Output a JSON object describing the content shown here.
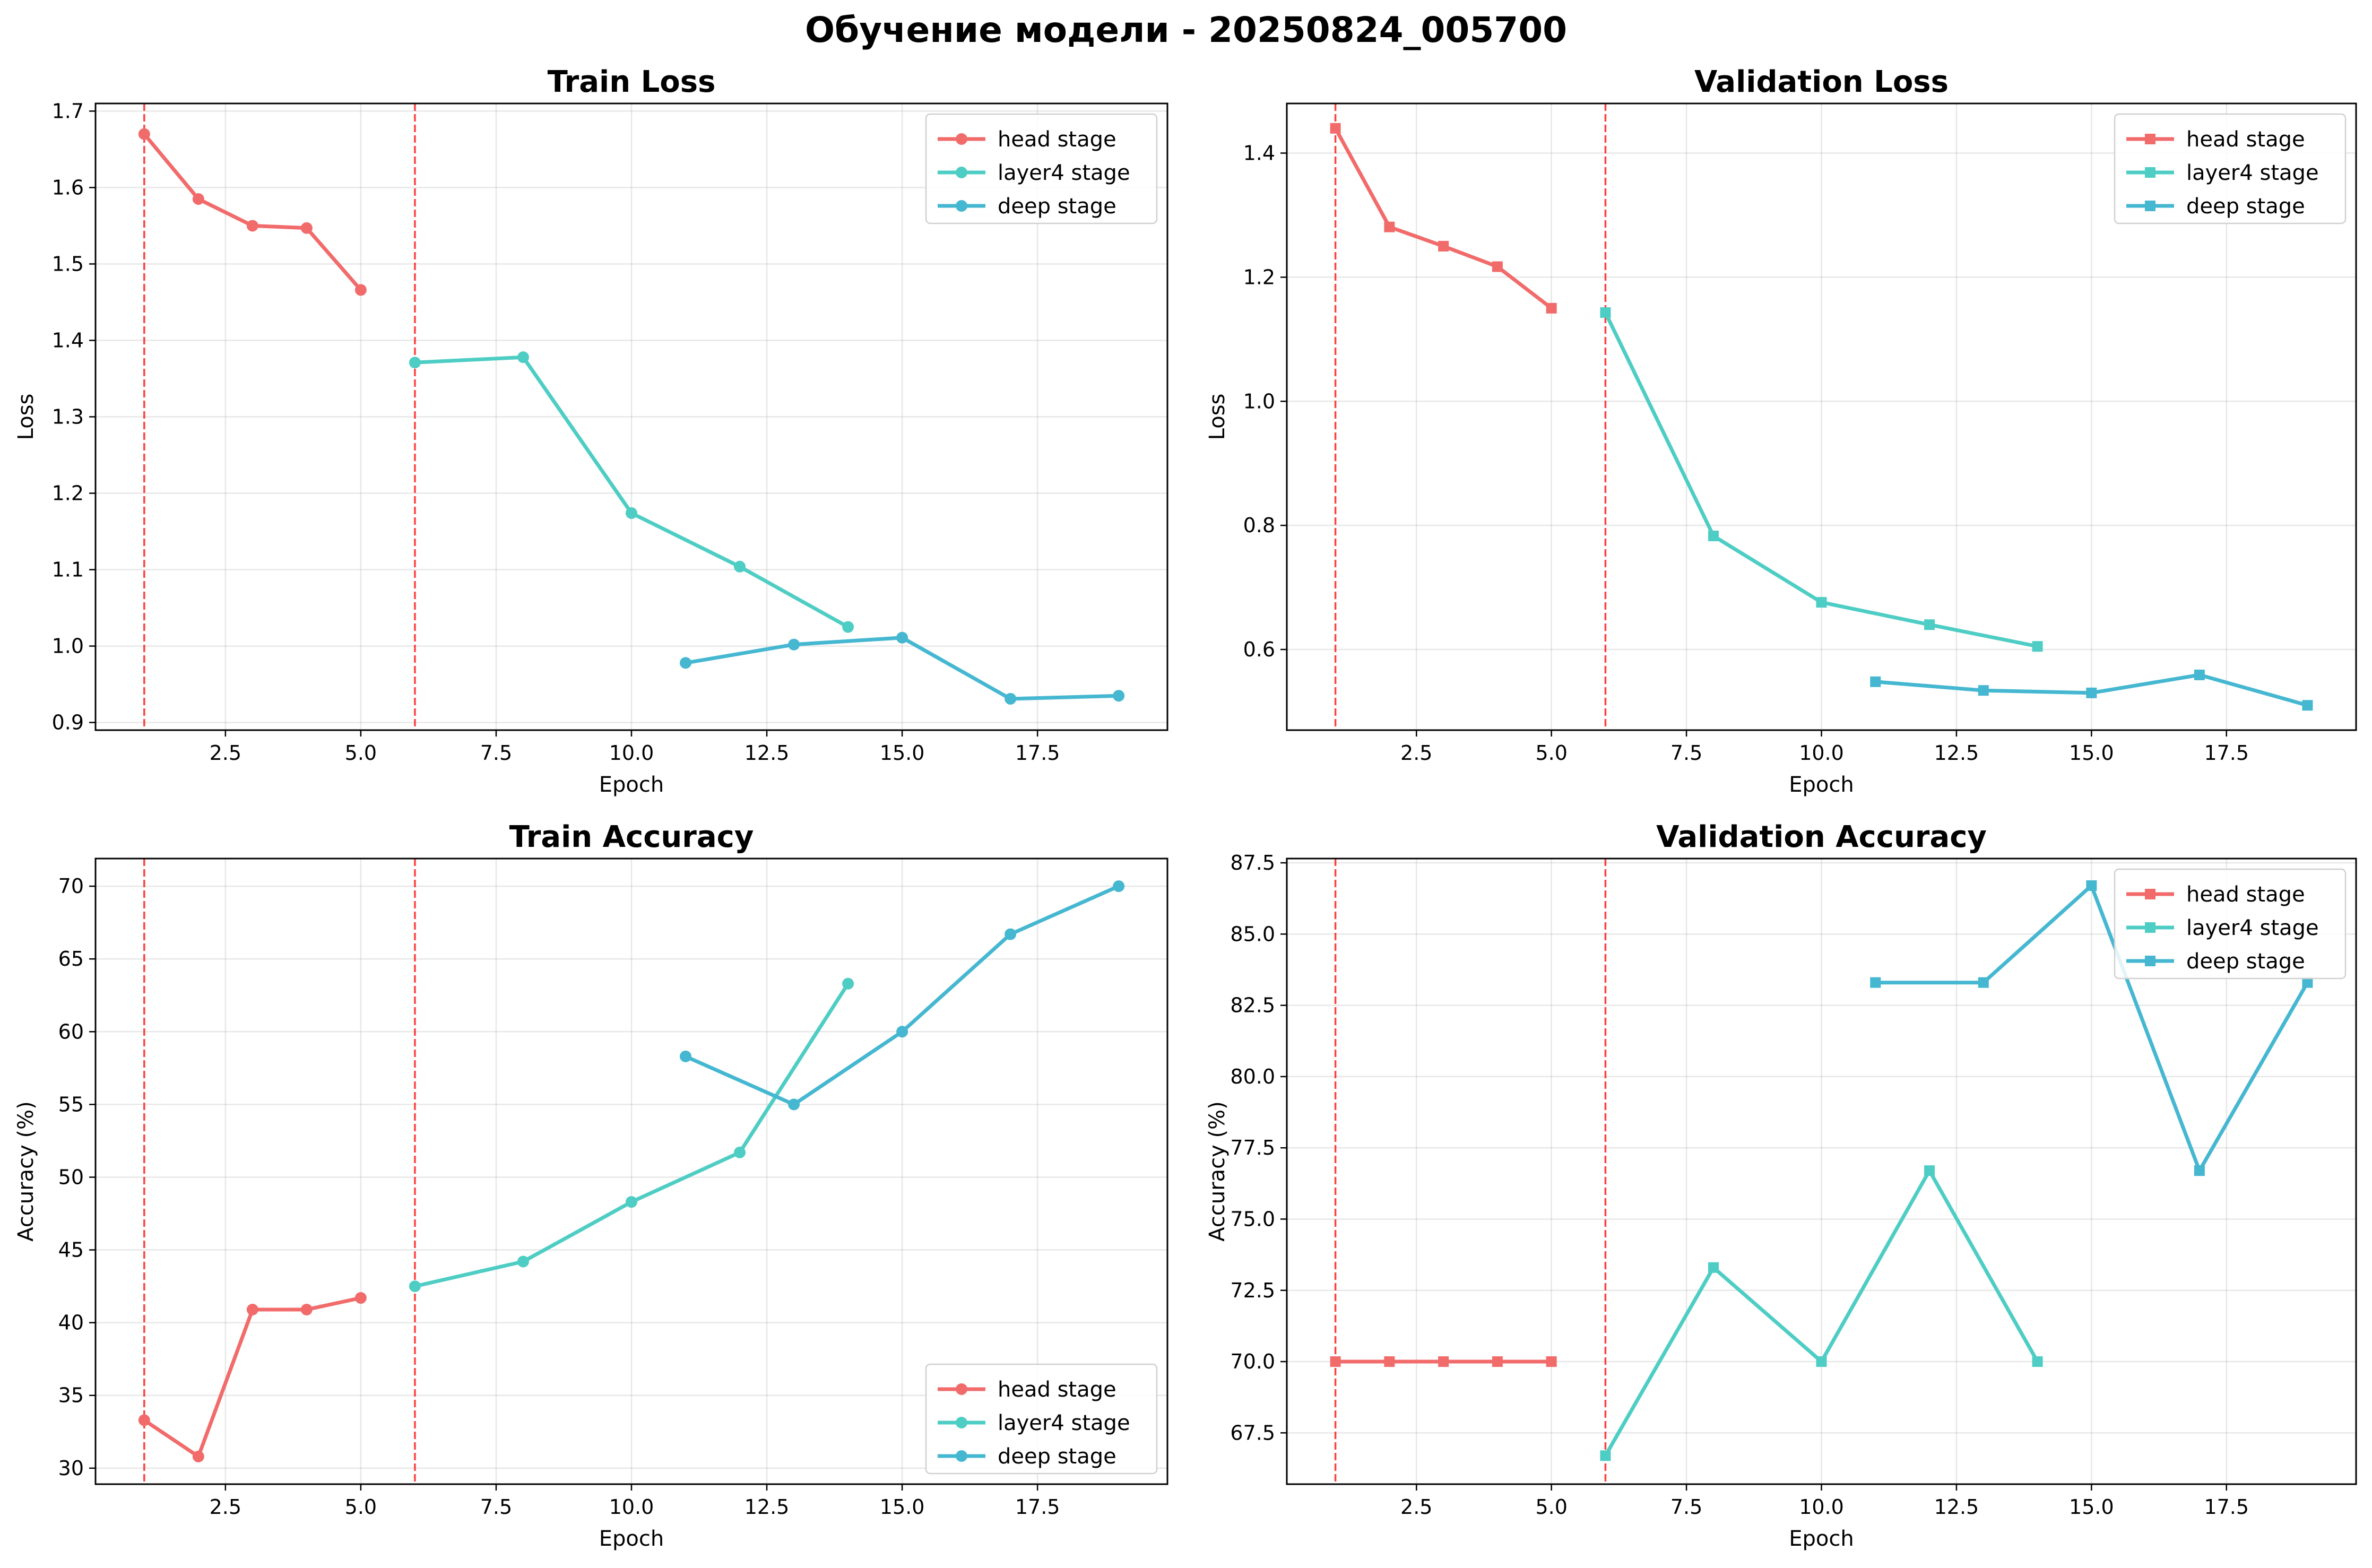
{
  "figure": {
    "title": "Обучение модели - 20250824_005700"
  },
  "colors": {
    "head": "#f26b6b",
    "layer4": "#4ecdc4",
    "deep": "#45b7d1",
    "boundary": "#ff0000"
  },
  "chart_data": [
    {
      "type": "line",
      "id": "train-loss",
      "title": "Train Loss",
      "xlabel": "Epoch",
      "ylabel": "Loss",
      "marker": "circle",
      "xlim": [
        0.1,
        19.9
      ],
      "ylim": [
        0.89,
        1.71
      ],
      "xticks": [
        2.5,
        5.0,
        7.5,
        10.0,
        12.5,
        15.0,
        17.5
      ],
      "yticks": [
        0.9,
        1.0,
        1.1,
        1.2,
        1.3,
        1.4,
        1.5,
        1.6,
        1.7
      ],
      "tick_decimals": [
        1,
        1
      ],
      "vlines": [
        1,
        6
      ],
      "legend": "upper right",
      "grid": true,
      "series": [
        {
          "name": "head stage",
          "key": "head",
          "x": [
            1,
            2,
            3,
            4,
            5
          ],
          "y": [
            1.67,
            1.585,
            1.55,
            1.547,
            1.466
          ]
        },
        {
          "name": "layer4 stage",
          "key": "layer4",
          "x": [
            6,
            8,
            10,
            12,
            14
          ],
          "y": [
            1.371,
            1.378,
            1.174,
            1.104,
            1.025
          ]
        },
        {
          "name": "deep stage",
          "key": "deep",
          "x": [
            11,
            13,
            15,
            17,
            19
          ],
          "y": [
            0.978,
            1.002,
            1.011,
            0.931,
            0.935
          ]
        }
      ]
    },
    {
      "type": "line",
      "id": "val-loss",
      "title": "Validation Loss",
      "xlabel": "Epoch",
      "ylabel": "Loss",
      "marker": "square",
      "xlim": [
        0.1,
        19.9
      ],
      "ylim": [
        0.47,
        1.48
      ],
      "xticks": [
        2.5,
        5.0,
        7.5,
        10.0,
        12.5,
        15.0,
        17.5
      ],
      "yticks": [
        0.6,
        0.8,
        1.0,
        1.2,
        1.4
      ],
      "tick_decimals": [
        1,
        1
      ],
      "vlines": [
        1,
        6
      ],
      "legend": "upper right",
      "grid": true,
      "series": [
        {
          "name": "head stage",
          "key": "head",
          "x": [
            1,
            2,
            3,
            4,
            5
          ],
          "y": [
            1.44,
            1.281,
            1.25,
            1.217,
            1.15
          ]
        },
        {
          "name": "layer4 stage",
          "key": "layer4",
          "x": [
            6,
            8,
            10,
            12,
            14
          ],
          "y": [
            1.143,
            0.783,
            0.676,
            0.64,
            0.605
          ]
        },
        {
          "name": "deep stage",
          "key": "deep",
          "x": [
            11,
            13,
            15,
            17,
            19
          ],
          "y": [
            0.548,
            0.534,
            0.53,
            0.559,
            0.51
          ]
        }
      ]
    },
    {
      "type": "line",
      "id": "train-acc",
      "title": "Train Accuracy",
      "xlabel": "Epoch",
      "ylabel": "Accuracy (%)",
      "marker": "circle",
      "xlim": [
        0.1,
        19.9
      ],
      "ylim": [
        28.9,
        71.9
      ],
      "xticks": [
        2.5,
        5.0,
        7.5,
        10.0,
        12.5,
        15.0,
        17.5
      ],
      "yticks": [
        30,
        35,
        40,
        45,
        50,
        55,
        60,
        65,
        70
      ],
      "tick_decimals": [
        1,
        0
      ],
      "vlines": [
        1,
        6
      ],
      "legend": "lower right",
      "grid": true,
      "series": [
        {
          "name": "head stage",
          "key": "head",
          "x": [
            1,
            2,
            3,
            4,
            5
          ],
          "y": [
            33.3,
            30.8,
            40.9,
            40.9,
            41.7
          ]
        },
        {
          "name": "layer4 stage",
          "key": "layer4",
          "x": [
            6,
            8,
            10,
            12,
            14
          ],
          "y": [
            42.5,
            44.2,
            48.3,
            51.7,
            63.3
          ]
        },
        {
          "name": "deep stage",
          "key": "deep",
          "x": [
            11,
            13,
            15,
            17,
            19
          ],
          "y": [
            58.3,
            55.0,
            60.0,
            66.7,
            70.0
          ]
        }
      ]
    },
    {
      "type": "line",
      "id": "val-acc",
      "title": "Validation Accuracy",
      "xlabel": "Epoch",
      "ylabel": "Accuracy (%)",
      "marker": "square",
      "xlim": [
        0.1,
        19.9
      ],
      "ylim": [
        65.7,
        87.65
      ],
      "xticks": [
        2.5,
        5.0,
        7.5,
        10.0,
        12.5,
        15.0,
        17.5
      ],
      "yticks": [
        67.5,
        70.0,
        72.5,
        75.0,
        77.5,
        80.0,
        82.5,
        85.0,
        87.5
      ],
      "tick_decimals": [
        1,
        1
      ],
      "vlines": [
        1,
        6
      ],
      "legend": "upper right",
      "grid": true,
      "series": [
        {
          "name": "head stage",
          "key": "head",
          "x": [
            1,
            2,
            3,
            4,
            5
          ],
          "y": [
            70.0,
            70.0,
            70.0,
            70.0,
            70.0
          ]
        },
        {
          "name": "layer4 stage",
          "key": "layer4",
          "x": [
            6,
            8,
            10,
            12,
            14
          ],
          "y": [
            66.7,
            73.3,
            70.0,
            76.7,
            70.0
          ]
        },
        {
          "name": "deep stage",
          "key": "deep",
          "x": [
            11,
            13,
            15,
            17,
            19
          ],
          "y": [
            83.3,
            83.3,
            86.7,
            76.7,
            83.3
          ]
        }
      ]
    }
  ]
}
